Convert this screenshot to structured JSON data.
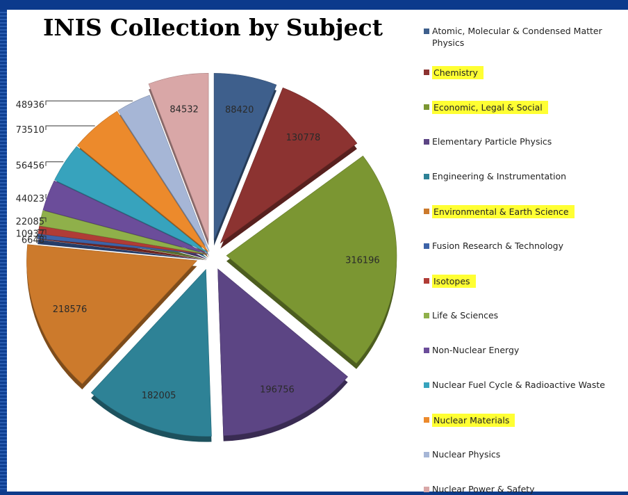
{
  "chart_data": {
    "type": "pie",
    "title": "INIS Collection by Subject",
    "categories": [
      "Atomic, Molecular & Condensed Matter Physics",
      "Chemistry",
      "Economic, Legal & Social",
      "Elementary Particle Physics",
      "Engineering & Instrumentation",
      "Environmental & Earth Science",
      "Fusion Research & Technology",
      "Isotopes",
      "Life & Sciences",
      "Non-Nuclear Energy",
      "Nuclear Fuel Cycle & Radioactive Waste",
      "Nuclear Materials",
      "Nuclear Physics",
      "Nuclear Power & Safety"
    ],
    "values": [
      88420,
      130778,
      316196,
      196756,
      182005,
      218576,
      6648,
      10937,
      22085,
      44023,
      56456,
      73510,
      48936,
      84532
    ],
    "data_labels": [
      "88420",
      "130778",
      "316196",
      "196756",
      "182005",
      "218576",
      "6648",
      "10937",
      "22085",
      "44023",
      "56456",
      "73510",
      "48936",
      "84532"
    ],
    "colors": [
      "#3e5f8c",
      "#8c3331",
      "#7b9632",
      "#5c4584",
      "#2e8296",
      "#cc7a2c",
      "#3d63a8",
      "#b03c36",
      "#8fb04a",
      "#6b4d9a",
      "#37a3bd",
      "#ec8a2c",
      "#a6b6d6",
      "#d9a7a7"
    ],
    "highlighted": [
      "Chemistry",
      "Economic, Legal & Social",
      "Environmental & Earth Science",
      "Isotopes",
      "Nuclear Materials"
    ],
    "highlight_color": "#ffff33",
    "legend_position": "right",
    "style": "exploded 3D pie"
  }
}
